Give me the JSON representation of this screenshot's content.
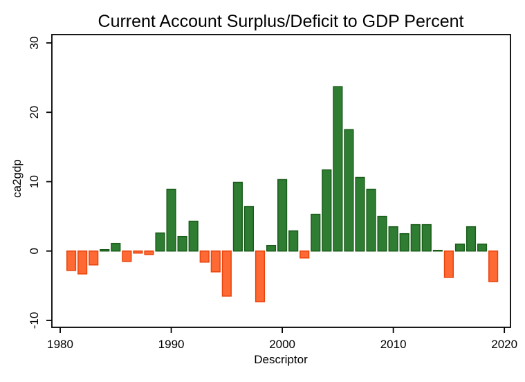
{
  "chart_data": {
    "type": "bar",
    "title": "Current Account Surplus/Deficit to GDP Percent",
    "xlabel": "Descriptor",
    "ylabel": "ca2gdp",
    "x": [
      1981,
      1982,
      1983,
      1984,
      1985,
      1986,
      1987,
      1988,
      1989,
      1990,
      1991,
      1992,
      1993,
      1994,
      1995,
      1996,
      1997,
      1998,
      1999,
      2000,
      2001,
      2002,
      2003,
      2004,
      2005,
      2006,
      2007,
      2008,
      2009,
      2010,
      2011,
      2012,
      2013,
      2014,
      2015,
      2016,
      2017,
      2018,
      2019
    ],
    "values": [
      -2.8,
      -3.3,
      -2.0,
      0.2,
      1.1,
      -1.5,
      -0.3,
      -0.5,
      2.6,
      8.9,
      2.1,
      4.3,
      -1.6,
      -3.0,
      -6.5,
      9.9,
      6.4,
      -7.3,
      0.8,
      10.3,
      2.9,
      -1.0,
      5.3,
      11.7,
      23.7,
      17.5,
      10.6,
      8.9,
      5.0,
      3.5,
      2.5,
      3.8,
      3.8,
      0.1,
      -3.8,
      1.0,
      3.5,
      1.0,
      -4.4
    ],
    "x_ticks": [
      1980,
      1990,
      2000,
      2010,
      2020
    ],
    "y_ticks": [
      30,
      20,
      10,
      0,
      -10
    ],
    "xlim": [
      1979.25,
      2020.55
    ],
    "ylim": [
      -11,
      31.2
    ],
    "grid": false,
    "legend": null,
    "bar_width_years": 0.79,
    "colors": {
      "positive_fill": "#2e7d32",
      "positive_border": "#1a5c1a",
      "negative_fill": "#ff6933",
      "negative_border": "#e8430c",
      "axis": "#000000",
      "background": "#ffffff"
    }
  }
}
